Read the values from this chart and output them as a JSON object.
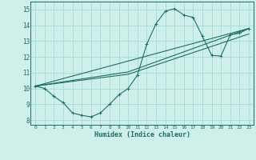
{
  "xlabel": "Humidex (Indice chaleur)",
  "bg_color": "#cff0ea",
  "grid_color": "#aaddd7",
  "line_color": "#1a7060",
  "xlim": [
    -0.5,
    23.5
  ],
  "ylim": [
    7.7,
    15.5
  ],
  "xticks": [
    0,
    1,
    2,
    3,
    4,
    5,
    6,
    7,
    8,
    9,
    10,
    11,
    12,
    13,
    14,
    15,
    16,
    17,
    18,
    19,
    20,
    21,
    22,
    23
  ],
  "yticks": [
    8,
    9,
    10,
    11,
    12,
    13,
    14,
    15
  ],
  "curve1_x": [
    0,
    1,
    2,
    3,
    4,
    5,
    6,
    7,
    8,
    9,
    10,
    11,
    12,
    13,
    14,
    15,
    16,
    17,
    18,
    19,
    20,
    21,
    22,
    23
  ],
  "curve1_y": [
    10.15,
    10.0,
    9.5,
    9.1,
    8.45,
    8.3,
    8.2,
    8.45,
    9.0,
    9.6,
    10.0,
    10.85,
    12.8,
    14.1,
    14.9,
    15.05,
    14.65,
    14.5,
    13.3,
    12.1,
    12.05,
    13.4,
    13.5,
    13.8
  ],
  "line1_x": [
    0,
    23
  ],
  "line1_y": [
    10.15,
    13.8
  ],
  "line2_x": [
    0,
    10,
    23
  ],
  "line2_y": [
    10.15,
    10.9,
    13.45
  ],
  "line3_x": [
    0,
    10,
    23
  ],
  "line3_y": [
    10.15,
    11.05,
    13.8
  ]
}
